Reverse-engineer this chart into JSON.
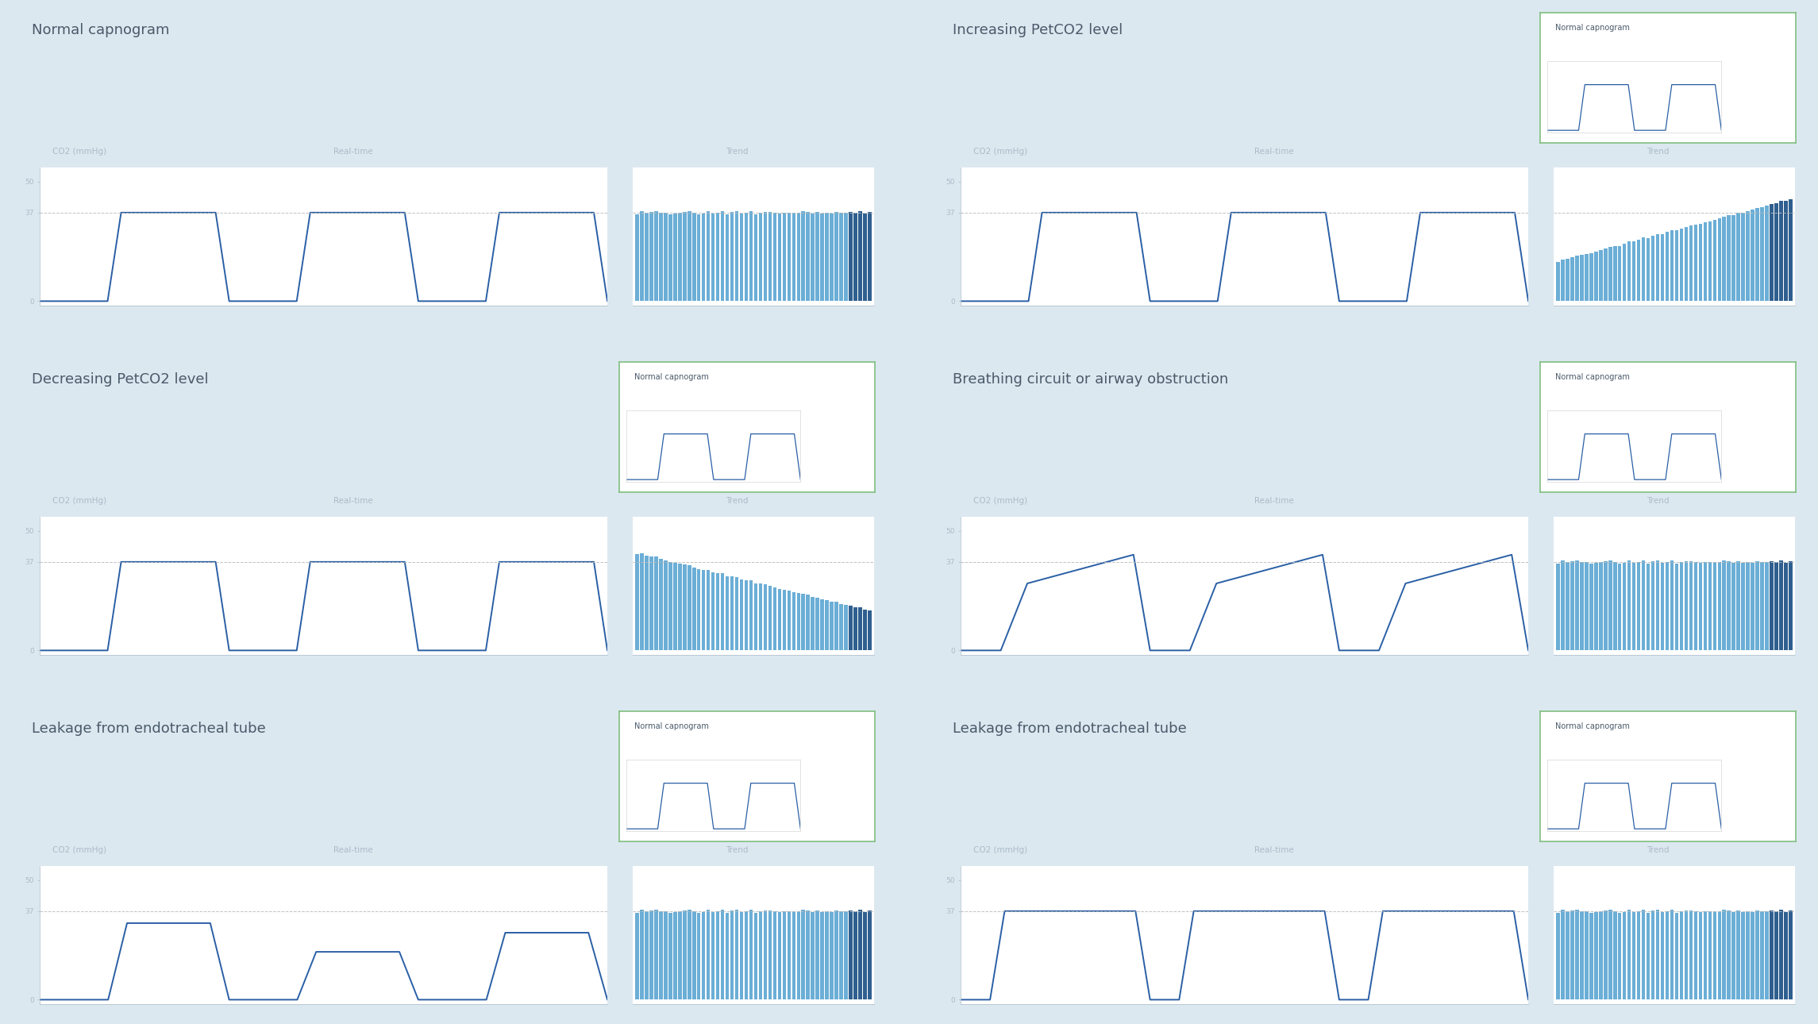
{
  "bg_outer": "#dce8f0",
  "bg_card": "#dde8f2",
  "bg_plot": "#ffffff",
  "line_color": "#2a5fa5",
  "dashed_color": "#bbbbbb",
  "bar_color_normal": "#6baed6",
  "bar_color_dark": "#2f5f8f",
  "title_color": "#4a5a6a",
  "label_color": "#aabbc8",
  "tick_color": "#aabbc8",
  "inset_border_color": "#7fbf7f",
  "panels": [
    {
      "title": "Normal capnogram",
      "has_inset": false,
      "type": "normal",
      "trend_type": "flat"
    },
    {
      "title": "Increasing PetCO2 level",
      "has_inset": true,
      "type": "normal",
      "trend_type": "increasing"
    },
    {
      "title": "Decreasing PetCO2 level",
      "has_inset": true,
      "type": "normal",
      "trend_type": "decreasing"
    },
    {
      "title": "Breathing circuit or airway obstruction",
      "has_inset": true,
      "type": "slow_rise",
      "trend_type": "flat"
    },
    {
      "title": "Leakage from endotracheal tube",
      "has_inset": true,
      "type": "leak",
      "trend_type": "flat"
    },
    {
      "title": "Leakage from endotracheal tube",
      "has_inset": true,
      "type": "wide_leak",
      "trend_type": "flat"
    }
  ],
  "ylabel": "CO2 (mmHg)",
  "xlabel_realtime": "Real-time",
  "xlabel_trend": "Trend"
}
